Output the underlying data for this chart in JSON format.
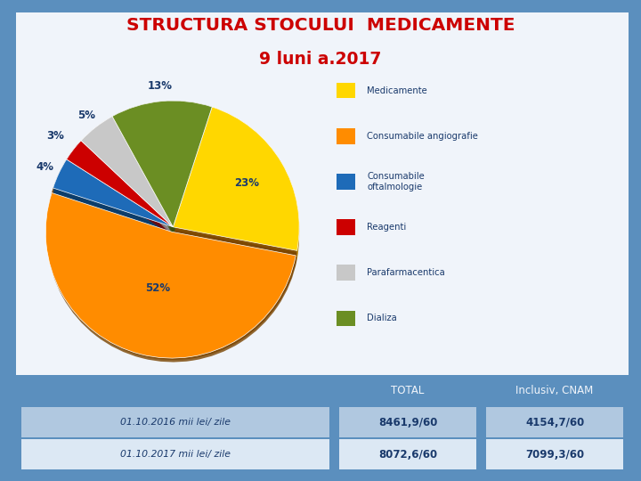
{
  "title_line1": "STRUCTURA STOCULUI  MEDICAMENTE",
  "title_line2": "9 luni a.2017",
  "title_color": "#cc0000",
  "bg_color": "#5b8fbe",
  "chart_bg": "#f0f4fa",
  "pie_values": [
    23,
    52,
    4,
    3,
    5,
    13
  ],
  "pie_colors": [
    "#ffd700",
    "#ff8c00",
    "#1e6bb8",
    "#cc0000",
    "#c8c8c8",
    "#6b8e23"
  ],
  "pie_3d_colors": [
    "#b8860b",
    "#7a4400",
    "#0d3d6b",
    "#7a0000",
    "#909090",
    "#3a5010"
  ],
  "legend_labels": [
    "Medicamente",
    "Consumabile angiografie",
    "Consumabile\noftalmologie",
    "Reagenti",
    "Parafarmacentica",
    "Dializa"
  ],
  "table_header": [
    "",
    "TOTAL",
    "Inclusiv, CNAM"
  ],
  "table_rows": [
    [
      "01.10.2016 mii lei/ zile",
      "8461,9/60",
      "4154,7/60"
    ],
    [
      "01.10.2017 mii lei/ zile",
      "8072,6/60",
      "7099,3/60"
    ]
  ],
  "table_header_bg": "#5b8fbe",
  "table_row1_bg": "#b0c8e0",
  "table_row2_bg": "#dce8f4",
  "table_text_color": "#1a3a6c",
  "table_header_text": "#f0f4fa"
}
